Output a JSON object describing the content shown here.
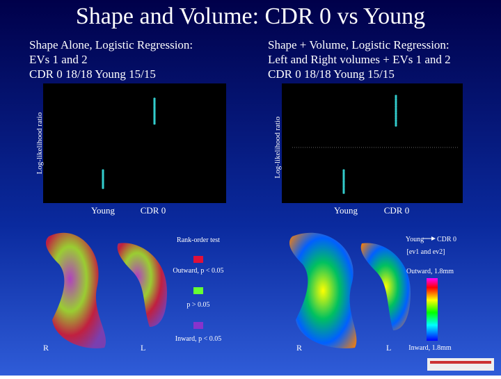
{
  "title": "Shape and Volume:  CDR 0 vs Young",
  "left": {
    "subtitle": [
      "Shape Alone, Logistic Regression:",
      "EVs 1 and 2",
      "CDR 0  18/18     Young  15/15"
    ],
    "y_label": "Log-likelihood ratio",
    "categories": [
      "Young",
      "CDR 0"
    ]
  },
  "right": {
    "subtitle": [
      "Shape + Volume, Logistic Regression:",
      "Left and Right volumes + EVs 1 and 2",
      "CDR 0  18/18    Young 15/15"
    ],
    "y_label": "Log-likelihood ratio",
    "categories": [
      "Young",
      "CDR 0"
    ]
  },
  "rank_panel": {
    "heading": "Rank-order test",
    "legend": [
      "Outward, p < 0.05",
      "p > 0.05",
      "Inward, p < 0.05"
    ],
    "sides": [
      "R",
      "L"
    ]
  },
  "diff_panel": {
    "from": "Young",
    "to": "CDR 0",
    "subheading": "[ev1 and ev2]",
    "top": "Outward, 1.8mm",
    "bottom": "Inward, 1.8mm",
    "sides": [
      "R",
      "L"
    ]
  }
}
